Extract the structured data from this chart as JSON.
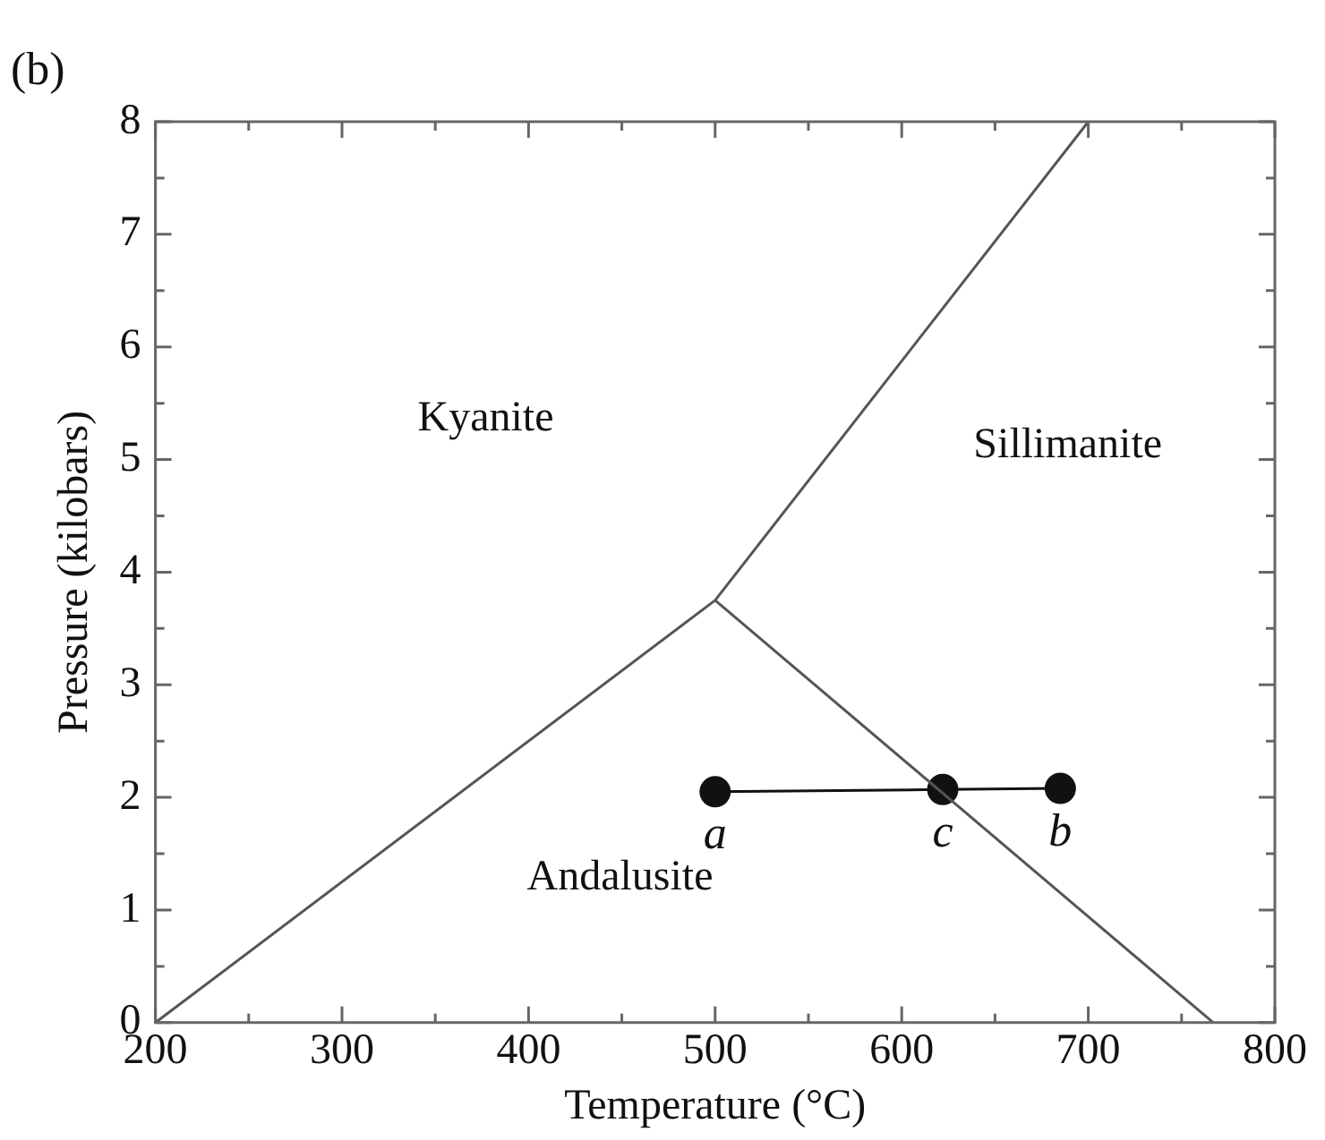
{
  "chart_data": {
    "type": "line",
    "xlabel": "Temperature (°C)",
    "ylabel": "Pressure (kilobars)",
    "xlim": [
      200,
      800
    ],
    "ylim": [
      0,
      8
    ],
    "xticks": [
      200,
      {
        "value": 250,
        "label": null
      },
      300,
      {
        "value": 350,
        "label": null
      },
      400,
      {
        "value": 450,
        "label": null
      },
      500,
      {
        "value": 550,
        "label": null
      },
      600,
      {
        "value": 650,
        "label": null
      },
      700,
      {
        "value": 750,
        "label": null
      },
      800
    ],
    "yticks": [
      0,
      {
        "value": 0.5,
        "label": null
      },
      1,
      {
        "value": 1.5,
        "label": null
      },
      2,
      {
        "value": 2.5,
        "label": null
      },
      3,
      {
        "value": 3.5,
        "label": null
      },
      4,
      {
        "value": 4.5,
        "label": null
      },
      5,
      {
        "value": 5.5,
        "label": null
      },
      6,
      {
        "value": 6.5,
        "label": null
      },
      7,
      {
        "value": 7.5,
        "label": null
      },
      8
    ],
    "grid": false,
    "legend": false,
    "marker": "none",
    "line_style": "solid",
    "series": [
      {
        "color": "#555555",
        "x": [
          200,
          500,
          700
        ],
        "values": [
          0,
          3.75,
          8
        ]
      },
      {
        "color": "#555555",
        "x": [
          500,
          767
        ],
        "values": [
          3.75,
          0
        ]
      },
      {
        "color": "#111111",
        "marker": "circle",
        "x": [
          500,
          622,
          685
        ],
        "values": [
          2.05,
          2.07,
          2.08
        ],
        "value_labels": [
          "a",
          "c",
          "b"
        ]
      }
    ],
    "annotations": [
      "(b)",
      "Kyanite",
      "Sillimanite",
      "Andalusite"
    ]
  }
}
